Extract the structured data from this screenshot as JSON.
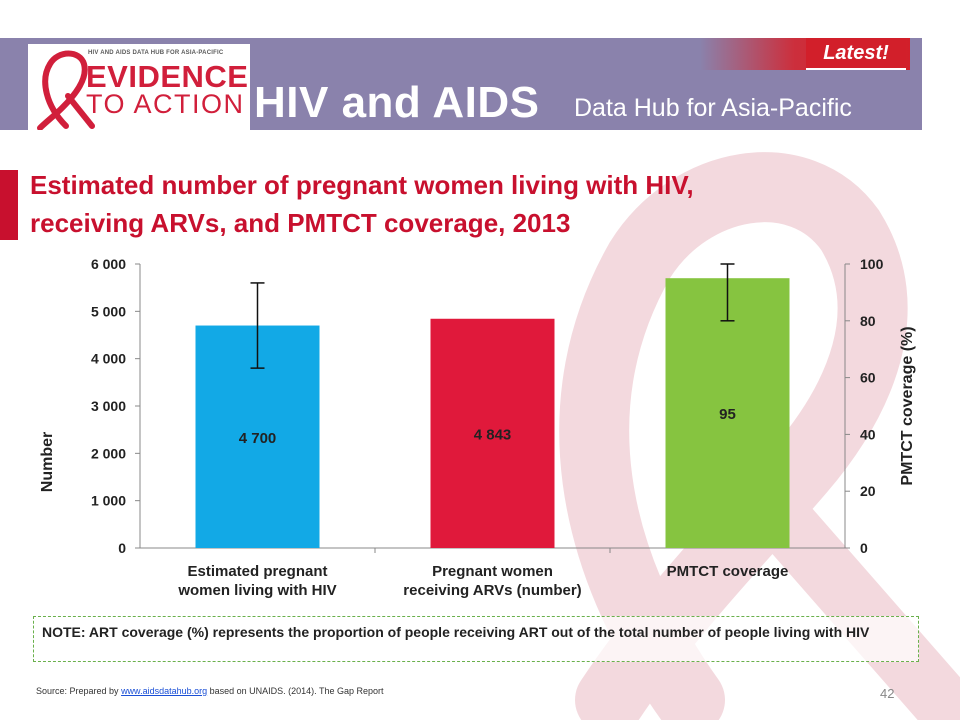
{
  "header": {
    "logo_small_text": "HIV AND AIDS DATA HUB FOR ASIA-PACIFIC",
    "logo_evidence": "EVIDENCE",
    "logo_to_action": "TO ACTION",
    "title": "HIV and AIDS",
    "subtitle": "Data Hub for Asia-Pacific",
    "badge": "Latest!"
  },
  "slide": {
    "title_line1": "Estimated number of pregnant women living with HIV,",
    "title_line2": "receiving ARVs, and PMTCT coverage, 2013"
  },
  "chart_data": {
    "type": "bar",
    "categories": [
      [
        "Estimated pregnant",
        "women living with HIV"
      ],
      [
        "Pregnant women",
        "receiving ARVs (number)"
      ],
      [
        "PMTCT coverage"
      ]
    ],
    "bars": [
      {
        "value": 4700,
        "axis": "left",
        "label": "4 700",
        "color": "#12a9e6",
        "error": [
          3800,
          5600
        ]
      },
      {
        "value": 4843,
        "axis": "left",
        "label": "4 843",
        "color": "#e0193b",
        "error": null
      },
      {
        "value": 95,
        "axis": "right",
        "label": "95",
        "color": "#86c440",
        "error": [
          80,
          100
        ]
      }
    ],
    "ylabel_left": "Number",
    "ylabel_right": "PMTCT coverage (%)",
    "ylim_left": [
      0,
      6000
    ],
    "ylim_right": [
      0,
      100
    ],
    "left_ticks": [
      0,
      1000,
      2000,
      3000,
      4000,
      5000,
      6000
    ],
    "left_tick_labels": [
      "0",
      "1 000",
      "2 000",
      "3 000",
      "4 000",
      "5 000",
      "6 000"
    ],
    "right_ticks": [
      0,
      20,
      40,
      60,
      80,
      100
    ],
    "right_tick_labels": [
      "0",
      "20",
      "40",
      "60",
      "80",
      "100"
    ],
    "grid": false,
    "legend": "none"
  },
  "note": {
    "text": "NOTE: ART coverage (%) represents the proportion of people receiving ART out of the total number of people living with HIV"
  },
  "footer": {
    "source_prefix": "Source:  Prepared by ",
    "source_link": "www.aidsdatahub.org",
    "source_suffix": "  based on UNAIDS. (2014). The Gap Report",
    "page_number": "42"
  },
  "colors": {
    "header_band": "#8a82ac",
    "brand_red": "#c8102e",
    "bar_blue": "#12a9e6",
    "bar_red": "#e0193b",
    "bar_green": "#86c440"
  }
}
